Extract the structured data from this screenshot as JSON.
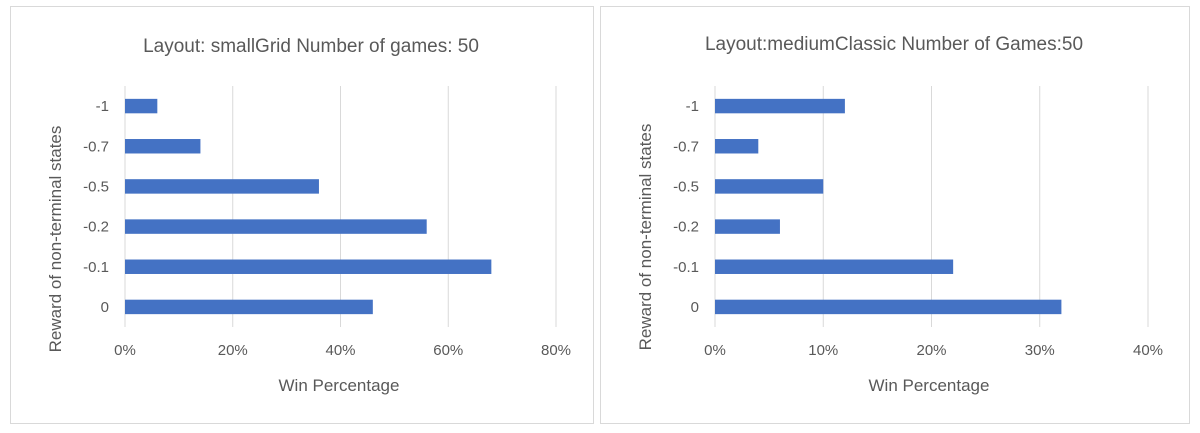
{
  "chart_data": [
    {
      "type": "bar",
      "orientation": "horizontal",
      "title": "Layout: smallGrid  Number of games: 50",
      "xlabel": "Win Percentage",
      "ylabel": "Reward of non-terminal states",
      "categories": [
        "-1",
        "-0.7",
        "-0.5",
        "-0.2",
        "-0.1",
        "0"
      ],
      "values": [
        6,
        14,
        36,
        56,
        68,
        46
      ],
      "xlim": [
        0,
        80
      ],
      "xticks": [
        "0%",
        "20%",
        "40%",
        "60%",
        "80%"
      ],
      "grid": true,
      "color": "#4472c4"
    },
    {
      "type": "bar",
      "orientation": "horizontal",
      "title": "Layout:mediumClassic  Number of Games:50",
      "xlabel": "Win Percentage",
      "ylabel": "Reward of non-terminal states",
      "categories": [
        "-1",
        "-0.7",
        "-0.5",
        "-0.2",
        "-0.1",
        "0"
      ],
      "values": [
        12,
        4,
        10,
        6,
        22,
        32
      ],
      "xlim": [
        0,
        40
      ],
      "xticks": [
        "0%",
        "10%",
        "20%",
        "30%",
        "40%"
      ],
      "grid": true,
      "color": "#4472c4"
    }
  ]
}
